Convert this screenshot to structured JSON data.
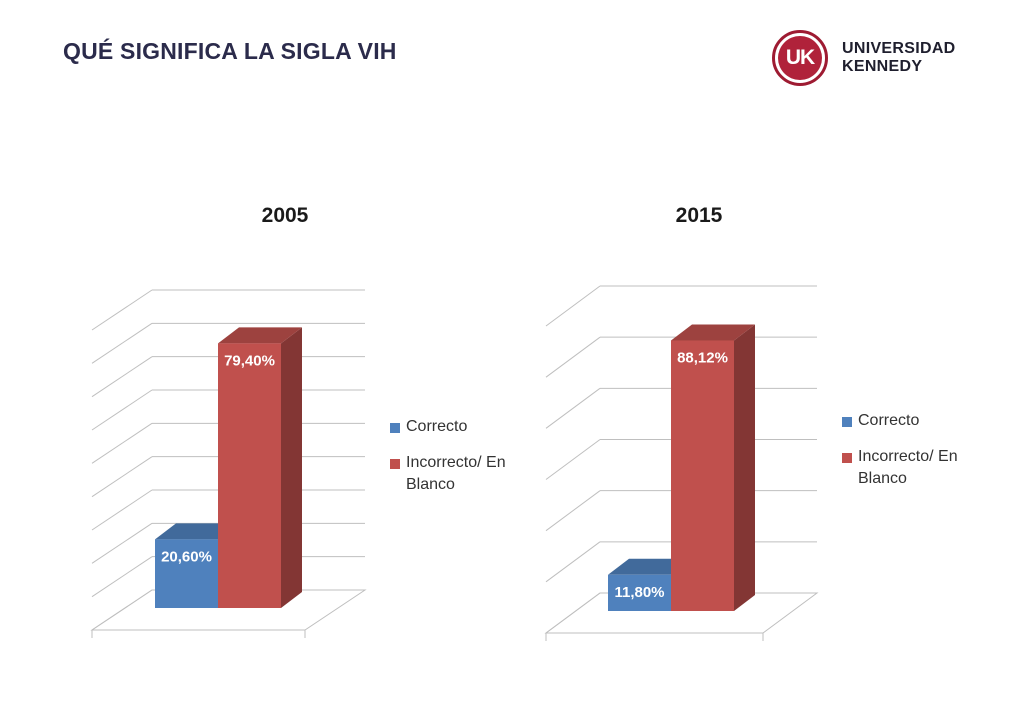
{
  "page": {
    "title": "QUÉ SIGNIFICA LA SIGLA VIH",
    "logo": {
      "mark": "UK",
      "line1": "UNIVERSIDAD",
      "line2": "KENNEDY"
    }
  },
  "colors": {
    "correcto": "#4f81bd",
    "incorrecto": "#c0504d"
  },
  "chart_data": [
    {
      "type": "bar",
      "title": "2005",
      "categories": [
        "Correcto",
        "Incorrecto/ En Blanco"
      ],
      "values": [
        20.6,
        79.4
      ],
      "data_labels": [
        "20,60%",
        "79,40%"
      ],
      "ylim": [
        0,
        90
      ],
      "grid": true,
      "legend": "right",
      "legend_entries": [
        "Correcto",
        "Incorrecto/ En Blanco"
      ]
    },
    {
      "type": "bar",
      "title": "2015",
      "categories": [
        "Correcto",
        "Incorrecto/ En Blanco"
      ],
      "values": [
        11.8,
        88.12
      ],
      "data_labels": [
        "11,80%",
        "88,12%"
      ],
      "ylim": [
        0,
        100
      ],
      "grid": true,
      "legend": "right",
      "legend_entries": [
        "Correcto",
        "Incorrecto/ En Blanco"
      ]
    }
  ]
}
